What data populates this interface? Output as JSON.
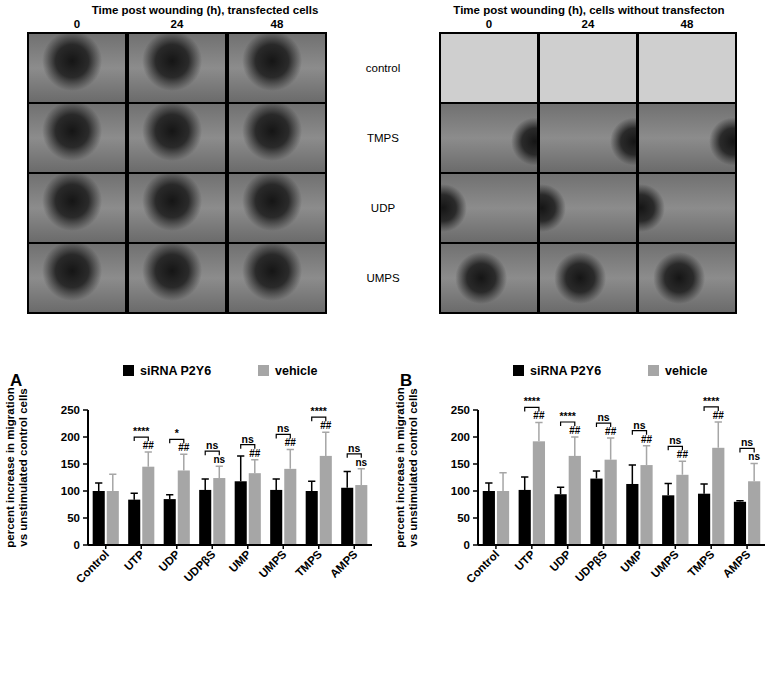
{
  "figure": {
    "left_title": "Time post wounding (h), transfected cells",
    "right_title": "Time post wounding (h), cells without transfecton",
    "timepoints": [
      "0",
      "24",
      "48"
    ],
    "row_labels": [
      "control",
      "TMPS",
      "UDP",
      "UMPS"
    ]
  },
  "chart_data": [
    {
      "type": "bar",
      "panel_label": "A",
      "y_label": [
        "percent increase in migration",
        "vs unstimulated control cells"
      ],
      "categories": [
        "Control",
        "UTP",
        "UDP",
        "UDPβS",
        "UMP",
        "UMPS",
        "TMPS",
        "AMPS"
      ],
      "series": [
        {
          "name": "siRNA P2Y6",
          "color": "#000000",
          "values": [
            100,
            84,
            85,
            102,
            118,
            102,
            100,
            106
          ],
          "errors": [
            15,
            12,
            8,
            20,
            47,
            20,
            18,
            30
          ]
        },
        {
          "name": "vehicle",
          "color": "#a6a6a6",
          "values": [
            100,
            145,
            138,
            124,
            133,
            141,
            165,
            111
          ],
          "errors": [
            31,
            27,
            30,
            22,
            25,
            36,
            44,
            30
          ]
        }
      ],
      "comparisons": [
        null,
        "****",
        "*",
        "ns",
        "ns",
        "ns",
        "****",
        "ns"
      ],
      "vehicle_marks": [
        null,
        "##",
        "##",
        "ns",
        "##",
        "##",
        "##",
        "ns"
      ],
      "ylim": [
        0,
        250
      ],
      "yticks": [
        0,
        50,
        100,
        150,
        200,
        250
      ],
      "legend": "top"
    },
    {
      "type": "bar",
      "panel_label": "B",
      "y_label": [
        "percent increase in migration",
        "vs unstimulated control cells"
      ],
      "categories": [
        "Control",
        "UTP",
        "UDP",
        "UDPβS",
        "UMP",
        "UMPS",
        "TMPS",
        "AMPS"
      ],
      "series": [
        {
          "name": "siRNA P2Y6",
          "color": "#000000",
          "values": [
            100,
            102,
            94,
            123,
            113,
            92,
            95,
            80
          ],
          "errors": [
            15,
            24,
            13,
            14,
            35,
            22,
            18,
            2
          ]
        },
        {
          "name": "vehicle",
          "color": "#a6a6a6",
          "values": [
            100,
            192,
            165,
            158,
            148,
            130,
            180,
            118
          ],
          "errors": [
            34,
            35,
            35,
            40,
            36,
            25,
            48,
            33
          ]
        }
      ],
      "comparisons": [
        null,
        "****",
        "****",
        "ns",
        "ns",
        "ns",
        "****",
        "ns"
      ],
      "vehicle_marks": [
        null,
        "##",
        "##",
        "##",
        "##",
        "##",
        "##",
        "ns"
      ],
      "ylim": [
        0,
        250
      ],
      "yticks": [
        0,
        50,
        100,
        150,
        200,
        250
      ],
      "legend": "top"
    }
  ]
}
